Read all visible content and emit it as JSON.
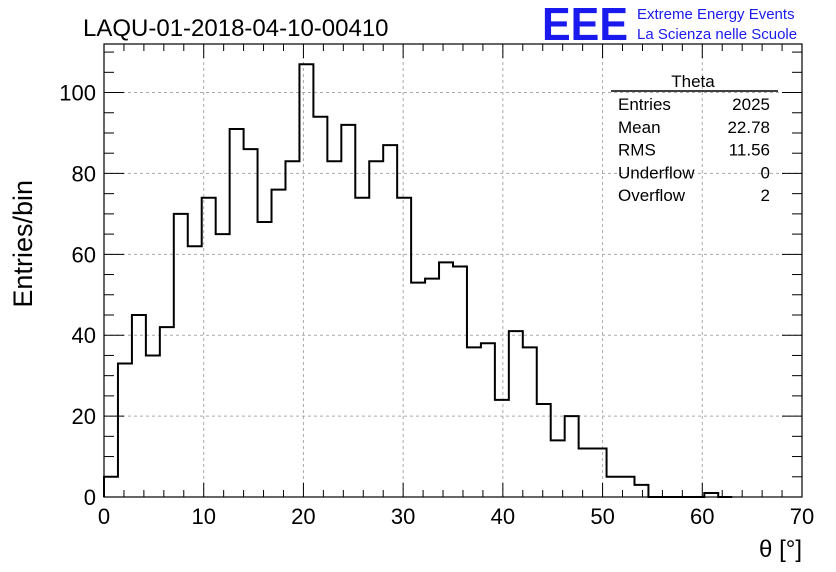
{
  "chart_data": {
    "type": "bar",
    "title": "LAQU-01-2018-04-10-00410",
    "xlabel": "θ [°]",
    "ylabel": "Entries/bin",
    "xlim": [
      0,
      70
    ],
    "ylim": [
      0,
      112
    ],
    "grid": true,
    "bin_width": 1.4,
    "bin_low_edges": [
      0,
      1.4,
      2.8,
      4.2,
      5.6,
      7,
      8.4,
      9.8,
      11.2,
      12.6,
      14,
      15.4,
      16.8,
      18.2,
      19.6,
      21,
      22.4,
      23.8,
      25.2,
      26.6,
      28,
      29.4,
      30.8,
      32.2,
      33.6,
      35,
      36.4,
      37.8,
      39.2,
      40.6,
      42,
      43.4,
      44.8,
      46.2,
      47.6,
      49,
      50.4,
      51.8,
      53.2,
      54.6,
      56,
      57.4,
      58.8,
      60.2,
      61.6
    ],
    "values": [
      5,
      33,
      45,
      35,
      42,
      70,
      62,
      74,
      65,
      91,
      86,
      68,
      76,
      83,
      107,
      94,
      83,
      92,
      74,
      83,
      87,
      74,
      53,
      54,
      58,
      57,
      37,
      38,
      24,
      41,
      37,
      23,
      14,
      20,
      12,
      12,
      5,
      5,
      3,
      0,
      0,
      0,
      0,
      1,
      0
    ],
    "x_ticks": [
      "0",
      "10",
      "20",
      "30",
      "40",
      "50",
      "60",
      "70"
    ],
    "y_ticks": [
      "0",
      "20",
      "40",
      "60",
      "80",
      "100"
    ],
    "legend": {
      "placement": "top-right",
      "title": "Theta",
      "rows": [
        {
          "label": "Entries",
          "value": "2025"
        },
        {
          "label": "Mean",
          "value": "22.78"
        },
        {
          "label": "RMS",
          "value": "11.56"
        },
        {
          "label": "Underflow",
          "value": "0"
        },
        {
          "label": "Overflow",
          "value": "2"
        }
      ]
    }
  },
  "logo": {
    "text": "EEE",
    "line1": "Extreme Energy Events",
    "line2": "La Scienza nelle Scuole",
    "color": "#1a1aee"
  },
  "colors": {
    "histogram": "#000000",
    "grid": "#aaaaaa",
    "frame": "#000000"
  }
}
